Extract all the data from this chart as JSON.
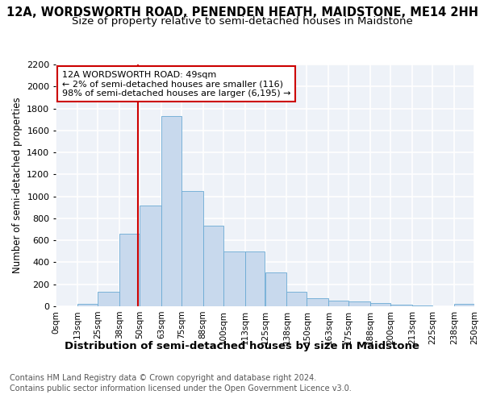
{
  "title": "12A, WORDSWORTH ROAD, PENENDEN HEATH, MAIDSTONE, ME14 2HH",
  "subtitle": "Size of property relative to semi-detached houses in Maidstone",
  "xlabel": "Distribution of semi-detached houses by size in Maidstone",
  "ylabel": "Number of semi-detached properties",
  "footnote1": "Contains HM Land Registry data © Crown copyright and database right 2024.",
  "footnote2": "Contains public sector information licensed under the Open Government Licence v3.0.",
  "property_size": 49,
  "property_label": "12A WORDSWORTH ROAD: 49sqm",
  "annotation_line1": "← 2% of semi-detached houses are smaller (116)",
  "annotation_line2": "98% of semi-detached houses are larger (6,195) →",
  "bar_color": "#c8d9ed",
  "bar_edge_color": "#6aaad4",
  "vline_color": "#cc0000",
  "annotation_box_edge": "#cc0000",
  "bin_edges": [
    0,
    13,
    25,
    38,
    50,
    63,
    75,
    88,
    100,
    113,
    125,
    138,
    150,
    163,
    175,
    188,
    200,
    213,
    225,
    238,
    250
  ],
  "bin_labels": [
    "0sqm",
    "13sqm",
    "25sqm",
    "38sqm",
    "50sqm",
    "63sqm",
    "75sqm",
    "88sqm",
    "100sqm",
    "113sqm",
    "125sqm",
    "138sqm",
    "150sqm",
    "163sqm",
    "175sqm",
    "188sqm",
    "200sqm",
    "213sqm",
    "225sqm",
    "238sqm",
    "250sqm"
  ],
  "counts": [
    0,
    20,
    130,
    660,
    920,
    1730,
    1050,
    730,
    500,
    500,
    310,
    130,
    70,
    55,
    45,
    30,
    15,
    5,
    0,
    20
  ],
  "ylim": [
    0,
    2200
  ],
  "yticks": [
    0,
    200,
    400,
    600,
    800,
    1000,
    1200,
    1400,
    1600,
    1800,
    2000,
    2200
  ],
  "bg_color": "#eef2f8",
  "grid_color": "#ffffff",
  "title_fontsize": 10.5,
  "subtitle_fontsize": 9.5
}
